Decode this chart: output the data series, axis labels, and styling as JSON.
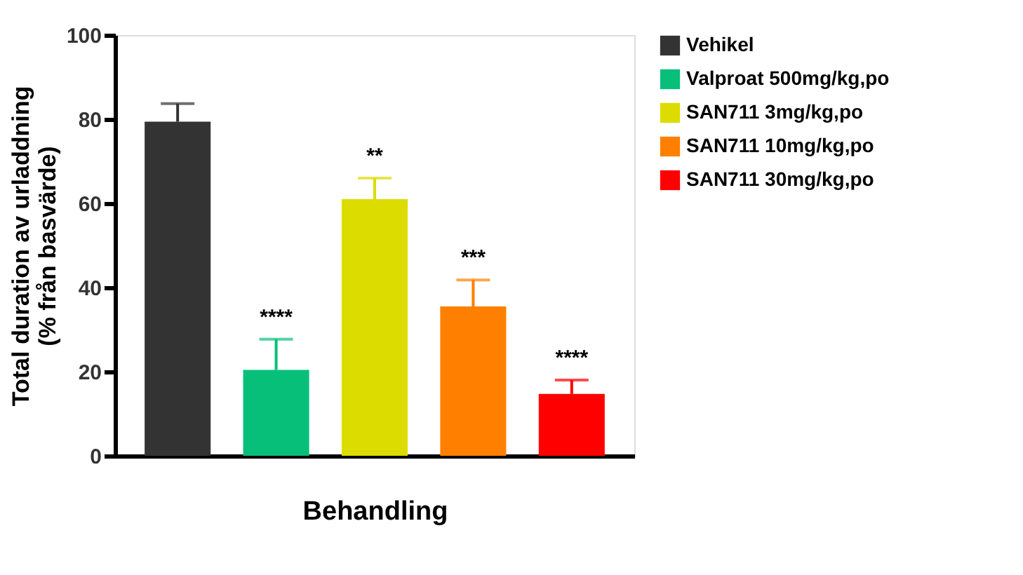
{
  "chart_data": {
    "type": "bar",
    "xlabel": "Behandling",
    "ylabel": "Total duration av urladdning\n(% från basvärde)",
    "categories": [
      null,
      null,
      null,
      null,
      null
    ],
    "series": [
      {
        "name": "Vehikel",
        "color": "#333333",
        "values": [
          79.4,
          null,
          null,
          null,
          null
        ],
        "errors": [
          [
            79.4,
            83.7
          ],
          null,
          null,
          null,
          null
        ]
      },
      {
        "name": "Valproat 500mg/kg,po",
        "color": "#08bf7a",
        "values": [
          null,
          20.4,
          null,
          null,
          null
        ],
        "errors": [
          null,
          [
            20.4,
            27.7
          ],
          null,
          null,
          null
        ],
        "value_labels": [
          null,
          "****",
          null,
          null,
          null
        ]
      },
      {
        "name": "SAN711 3mg/kg,po",
        "color": "#dcdc00",
        "values": [
          null,
          null,
          61.0,
          null,
          null
        ],
        "errors": [
          null,
          null,
          [
            61.0,
            66.0
          ],
          null,
          null
        ],
        "value_labels": [
          null,
          null,
          "**",
          null,
          null
        ]
      },
      {
        "name": "SAN711 10mg/kg,po",
        "color": "#ff8000",
        "values": [
          null,
          null,
          null,
          35.5,
          null
        ],
        "errors": [
          null,
          null,
          null,
          [
            35.5,
            41.8
          ],
          null
        ],
        "value_labels": [
          null,
          null,
          null,
          "***",
          null
        ]
      },
      {
        "name": "SAN711 30mg/kg,po",
        "color": "#ff0000",
        "values": [
          null,
          null,
          null,
          null,
          14.7
        ],
        "errors": [
          null,
          null,
          null,
          null,
          [
            14.7,
            18.0
          ]
        ],
        "value_labels": [
          null,
          null,
          null,
          null,
          "****"
        ]
      }
    ],
    "ylim": [
      0,
      100
    ],
    "yticks": [
      0,
      20,
      40,
      60,
      80,
      100
    ],
    "tick_labels": "y",
    "legend": "top right"
  }
}
